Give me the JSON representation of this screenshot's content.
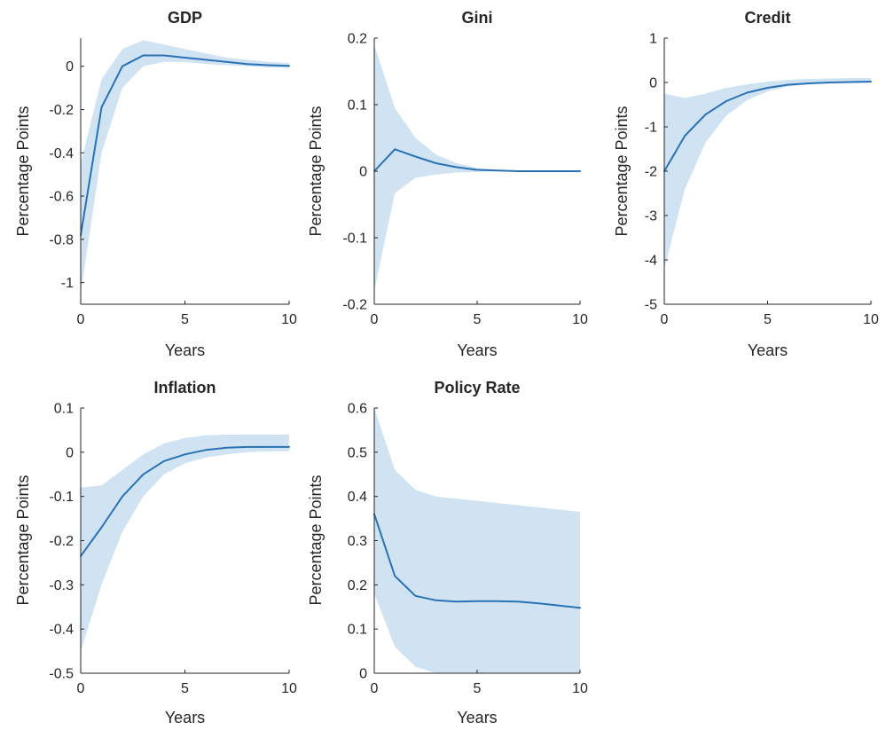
{
  "colors": {
    "line": "#2a72b5",
    "band": "#cfe3f2",
    "axis": "#262626"
  },
  "chart_data": [
    {
      "type": "area",
      "title": "GDP",
      "xlabel": "Years",
      "ylabel": "Percentage Points",
      "xlim": [
        0,
        10
      ],
      "ylim": [
        -1.1,
        0.13
      ],
      "xticks": [
        0,
        5,
        10
      ],
      "yticks": [
        -1,
        -0.8,
        -0.6,
        -0.4,
        -0.2,
        0
      ],
      "xtick_labels": [
        "0",
        "5",
        "10"
      ],
      "ytick_labels": [
        "-1",
        "-0.8",
        "-0.6",
        "-0.4",
        "-0.2",
        "0"
      ],
      "x": [
        0,
        1,
        2,
        3,
        4,
        5,
        6,
        7,
        8,
        9,
        10
      ],
      "median": [
        -0.78,
        -0.19,
        0.0,
        0.05,
        0.05,
        0.04,
        0.03,
        0.02,
        0.01,
        0.005,
        0.002
      ],
      "lower": [
        -1.05,
        -0.4,
        -0.1,
        0.0,
        0.02,
        0.02,
        0.01,
        0.005,
        0.0,
        -0.005,
        -0.008
      ],
      "upper": [
        -0.45,
        -0.06,
        0.08,
        0.12,
        0.1,
        0.08,
        0.06,
        0.04,
        0.03,
        0.02,
        0.015
      ]
    },
    {
      "type": "area",
      "title": "Gini",
      "xlabel": "Years",
      "ylabel": "Percentage Points",
      "xlim": [
        0,
        10
      ],
      "ylim": [
        -0.2,
        0.2
      ],
      "xticks": [
        0,
        5,
        10
      ],
      "yticks": [
        -0.2,
        -0.1,
        0,
        0.1,
        0.2
      ],
      "xtick_labels": [
        "0",
        "5",
        "10"
      ],
      "ytick_labels": [
        "-0.2",
        "-0.1",
        "0",
        "0.1",
        "0.2"
      ],
      "x": [
        0,
        1,
        2,
        3,
        4,
        5,
        6,
        7,
        8,
        9,
        10
      ],
      "median": [
        0.0,
        0.033,
        0.022,
        0.012,
        0.006,
        0.002,
        0.001,
        0.0,
        0.0,
        0.0,
        0.0
      ],
      "lower": [
        -0.18,
        -0.033,
        -0.01,
        -0.005,
        -0.002,
        -0.001,
        0.0,
        0.0,
        0.0,
        0.0,
        0.0
      ],
      "upper": [
        0.19,
        0.095,
        0.05,
        0.025,
        0.012,
        0.005,
        0.002,
        0.001,
        0.0,
        0.0,
        0.0
      ]
    },
    {
      "type": "area",
      "title": "Credit",
      "xlabel": "Years",
      "ylabel": "Percentage Points",
      "xlim": [
        0,
        10
      ],
      "ylim": [
        -5,
        1
      ],
      "xticks": [
        0,
        5,
        10
      ],
      "yticks": [
        -5,
        -4,
        -3,
        -2,
        -1,
        0,
        1
      ],
      "xtick_labels": [
        "0",
        "5",
        "10"
      ],
      "ytick_labels": [
        "-5",
        "-4",
        "-3",
        "-2",
        "-1",
        "0",
        "1"
      ],
      "x": [
        0,
        1,
        2,
        3,
        4,
        5,
        6,
        7,
        8,
        9,
        10
      ],
      "median": [
        -2.0,
        -1.2,
        -0.72,
        -0.42,
        -0.23,
        -0.12,
        -0.05,
        -0.02,
        0.0,
        0.01,
        0.02
      ],
      "lower": [
        -4.2,
        -2.4,
        -1.35,
        -0.75,
        -0.4,
        -0.2,
        -0.09,
        -0.04,
        -0.02,
        -0.01,
        0.0
      ],
      "upper": [
        -0.25,
        -0.35,
        -0.25,
        -0.12,
        -0.04,
        0.02,
        0.06,
        0.08,
        0.09,
        0.1,
        0.1
      ]
    },
    {
      "type": "area",
      "title": "Inflation",
      "xlabel": "Years",
      "ylabel": "Percentage Points",
      "xlim": [
        0,
        10
      ],
      "ylim": [
        -0.5,
        0.1
      ],
      "xticks": [
        0,
        5,
        10
      ],
      "yticks": [
        -0.5,
        -0.4,
        -0.3,
        -0.2,
        -0.1,
        0,
        0.1
      ],
      "xtick_labels": [
        "0",
        "5",
        "10"
      ],
      "ytick_labels": [
        "-0.5",
        "-0.4",
        "-0.3",
        "-0.2",
        "-0.1",
        "0",
        "0.1"
      ],
      "x": [
        0,
        1,
        2,
        3,
        4,
        5,
        6,
        7,
        8,
        9,
        10
      ],
      "median": [
        -0.235,
        -0.17,
        -0.1,
        -0.05,
        -0.02,
        -0.005,
        0.005,
        0.01,
        0.012,
        0.012,
        0.012
      ],
      "lower": [
        -0.45,
        -0.3,
        -0.18,
        -0.1,
        -0.05,
        -0.025,
        -0.012,
        -0.005,
        0.0,
        0.002,
        0.002
      ],
      "upper": [
        -0.08,
        -0.075,
        -0.04,
        -0.005,
        0.02,
        0.032,
        0.038,
        0.04,
        0.04,
        0.04,
        0.04
      ]
    },
    {
      "type": "area",
      "title": "Policy Rate",
      "xlabel": "Years",
      "ylabel": "Percentage Points",
      "xlim": [
        0,
        10
      ],
      "ylim": [
        0,
        0.6
      ],
      "xticks": [
        0,
        5,
        10
      ],
      "yticks": [
        0,
        0.1,
        0.2,
        0.3,
        0.4,
        0.5,
        0.6
      ],
      "xtick_labels": [
        "0",
        "5",
        "10"
      ],
      "ytick_labels": [
        "0",
        "0.1",
        "0.2",
        "0.3",
        "0.4",
        "0.5",
        "0.6"
      ],
      "x": [
        0,
        1,
        2,
        3,
        4,
        5,
        6,
        7,
        8,
        9,
        10
      ],
      "median": [
        0.36,
        0.22,
        0.175,
        0.165,
        0.162,
        0.163,
        0.163,
        0.162,
        0.158,
        0.153,
        0.148
      ],
      "lower": [
        0.18,
        0.06,
        0.015,
        0.0,
        0.0,
        0.0,
        0.0,
        0.0,
        0.0,
        0.0,
        0.0
      ],
      "upper": [
        0.6,
        0.46,
        0.415,
        0.4,
        0.395,
        0.39,
        0.385,
        0.38,
        0.375,
        0.37,
        0.365
      ]
    }
  ]
}
